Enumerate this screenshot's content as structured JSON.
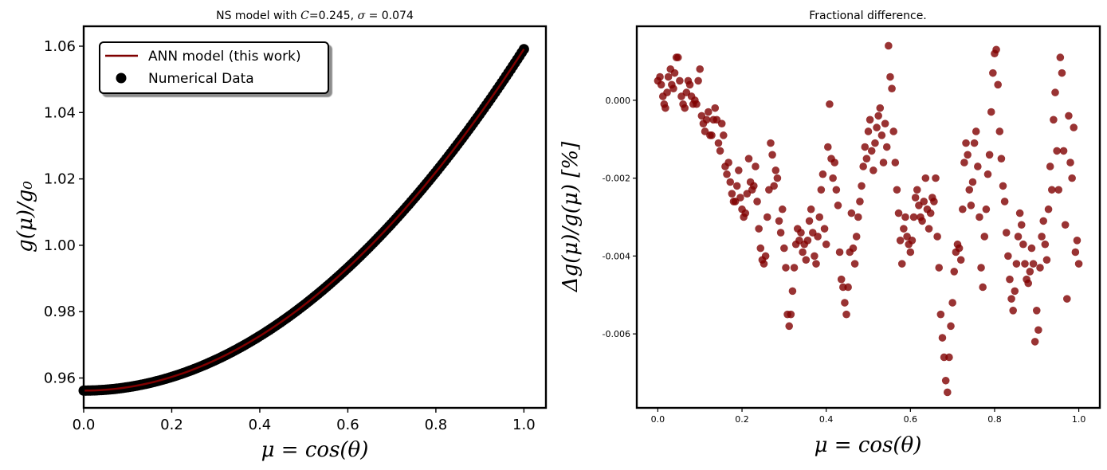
{
  "colors": {
    "accent": "#7f0000",
    "marker_right": "#800000",
    "marker_left": "#000000"
  },
  "chart_data": [
    {
      "type": "scatter",
      "title": "NS model with C=0.245, σ = 0.074",
      "title_parts": {
        "prefix": "NS model with ",
        "C_symbol": "C",
        "C_value": "=0.245, ",
        "sigma_symbol": "σ",
        "sigma_value": " = 0.074"
      },
      "xlabel": "μ = cos(θ)",
      "ylabel": "g(μ)/g₀",
      "xlim": [
        0.0,
        1.05
      ],
      "ylim": [
        0.951,
        1.066
      ],
      "x_ticks": [
        "0.0",
        "0.2",
        "0.4",
        "0.6",
        "0.8",
        "1.0"
      ],
      "y_ticks": [
        "0.96",
        "0.98",
        "1.00",
        "1.02",
        "1.04",
        "1.06"
      ],
      "grid": false,
      "legend": {
        "position": "top-left",
        "entries": [
          "ANN model (this work)",
          "Numerical Data"
        ]
      },
      "series": [
        {
          "name": "ANN model (this work)",
          "kind": "line",
          "model": "quadratic",
          "coefficients": {
            "a0": 0.9562,
            "a1": 0.0,
            "a2": 0.1029
          }
        },
        {
          "name": "Numerical Data",
          "kind": "scatter",
          "x_range": [
            0.0,
            1.0
          ],
          "n_points": 200,
          "same_model_as": "ANN model (this work)"
        }
      ]
    },
    {
      "type": "scatter",
      "title": "Fractional difference.",
      "xlabel": "μ = cos(θ)",
      "ylabel": "Δg(μ)/g(μ) [%]",
      "xlim": [
        -0.05,
        1.05
      ],
      "ylim": [
        -0.0079,
        0.0019
      ],
      "x_ticks": [
        "0.0",
        "0.2",
        "0.4",
        "0.6",
        "0.8",
        "1.0"
      ],
      "y_ticks": [
        "0.000",
        "-0.002",
        "-0.004",
        "-0.006"
      ],
      "grid": false,
      "points": [
        [
          0.0,
          0.0005
        ],
        [
          0.005,
          0.0006
        ],
        [
          0.008,
          0.0004
        ],
        [
          0.012,
          0.0001
        ],
        [
          0.015,
          -0.0001
        ],
        [
          0.018,
          -0.0002
        ],
        [
          0.022,
          0.0002
        ],
        [
          0.025,
          0.0006
        ],
        [
          0.03,
          0.0008
        ],
        [
          0.033,
          0.0004
        ],
        [
          0.037,
          0.0003
        ],
        [
          0.04,
          0.0007
        ],
        [
          0.044,
          0.0011
        ],
        [
          0.048,
          0.0011
        ],
        [
          0.052,
          0.0005
        ],
        [
          0.056,
          0.0001
        ],
        [
          0.06,
          -0.0001
        ],
        [
          0.064,
          -0.0002
        ],
        [
          0.068,
          0.0002
        ],
        [
          0.072,
          0.0005
        ],
        [
          0.076,
          0.0004
        ],
        [
          0.08,
          0.0001
        ],
        [
          0.084,
          -0.0001
        ],
        [
          0.088,
          0.0
        ],
        [
          0.092,
          -0.0001
        ],
        [
          0.096,
          0.0005
        ],
        [
          0.1,
          0.0008
        ],
        [
          0.104,
          -0.0004
        ],
        [
          0.108,
          -0.0006
        ],
        [
          0.112,
          -0.0008
        ],
        [
          0.116,
          -0.0005
        ],
        [
          0.12,
          -0.0003
        ],
        [
          0.124,
          -0.0009
        ],
        [
          0.128,
          -0.0009
        ],
        [
          0.132,
          -0.0005
        ],
        [
          0.136,
          -0.0002
        ],
        [
          0.14,
          -0.0005
        ],
        [
          0.144,
          -0.0011
        ],
        [
          0.148,
          -0.0013
        ],
        [
          0.152,
          -0.0006
        ],
        [
          0.156,
          -0.0009
        ],
        [
          0.16,
          -0.0017
        ],
        [
          0.164,
          -0.0019
        ],
        [
          0.168,
          -0.0016
        ],
        [
          0.172,
          -0.0021
        ],
        [
          0.176,
          -0.0024
        ],
        [
          0.18,
          -0.0026
        ],
        [
          0.184,
          -0.0026
        ],
        [
          0.188,
          -0.0022
        ],
        [
          0.192,
          -0.0018
        ],
        [
          0.196,
          -0.0025
        ],
        [
          0.2,
          -0.0028
        ],
        [
          0.204,
          -0.003
        ],
        [
          0.208,
          -0.0029
        ],
        [
          0.212,
          -0.0024
        ],
        [
          0.216,
          -0.0015
        ],
        [
          0.22,
          -0.0021
        ],
        [
          0.224,
          -0.0023
        ],
        [
          0.228,
          -0.0022
        ],
        [
          0.232,
          -0.0017
        ],
        [
          0.236,
          -0.0026
        ],
        [
          0.24,
          -0.0033
        ],
        [
          0.244,
          -0.0038
        ],
        [
          0.248,
          -0.0041
        ],
        [
          0.252,
          -0.0042
        ],
        [
          0.256,
          -0.004
        ],
        [
          0.26,
          -0.003
        ],
        [
          0.264,
          -0.0023
        ],
        [
          0.268,
          -0.0011
        ],
        [
          0.272,
          -0.0014
        ],
        [
          0.276,
          -0.0022
        ],
        [
          0.28,
          -0.0018
        ],
        [
          0.284,
          -0.002
        ],
        [
          0.288,
          -0.0031
        ],
        [
          0.292,
          -0.0034
        ],
        [
          0.296,
          -0.0028
        ],
        [
          0.3,
          -0.0038
        ],
        [
          0.304,
          -0.0043
        ],
        [
          0.308,
          -0.0055
        ],
        [
          0.312,
          -0.0058
        ],
        [
          0.316,
          -0.0055
        ],
        [
          0.32,
          -0.0049
        ],
        [
          0.324,
          -0.0043
        ],
        [
          0.328,
          -0.0037
        ],
        [
          0.332,
          -0.0033
        ],
        [
          0.336,
          -0.0036
        ],
        [
          0.34,
          -0.0034
        ],
        [
          0.344,
          -0.0039
        ],
        [
          0.348,
          -0.0037
        ],
        [
          0.352,
          -0.0041
        ],
        [
          0.356,
          -0.0036
        ],
        [
          0.36,
          -0.0031
        ],
        [
          0.364,
          -0.0028
        ],
        [
          0.368,
          -0.0034
        ],
        [
          0.372,
          -0.004
        ],
        [
          0.376,
          -0.0042
        ],
        [
          0.38,
          -0.0035
        ],
        [
          0.384,
          -0.003
        ],
        [
          0.388,
          -0.0023
        ],
        [
          0.392,
          -0.0019
        ],
        [
          0.396,
          -0.0033
        ],
        [
          0.4,
          -0.0037
        ],
        [
          0.404,
          -0.0012
        ],
        [
          0.408,
          -0.0001
        ],
        [
          0.412,
          -0.0015
        ],
        [
          0.416,
          -0.002
        ],
        [
          0.42,
          -0.0016
        ],
        [
          0.424,
          -0.0023
        ],
        [
          0.428,
          -0.0027
        ],
        [
          0.432,
          -0.0039
        ],
        [
          0.436,
          -0.0046
        ],
        [
          0.44,
          -0.0048
        ],
        [
          0.444,
          -0.0052
        ],
        [
          0.448,
          -0.0055
        ],
        [
          0.452,
          -0.0048
        ],
        [
          0.456,
          -0.0039
        ],
        [
          0.46,
          -0.0029
        ],
        [
          0.464,
          -0.0038
        ],
        [
          0.468,
          -0.0042
        ],
        [
          0.472,
          -0.0035
        ],
        [
          0.476,
          -0.003
        ],
        [
          0.48,
          -0.0026
        ],
        [
          0.484,
          -0.0022
        ],
        [
          0.488,
          -0.0017
        ],
        [
          0.492,
          -0.0012
        ],
        [
          0.496,
          -0.0015
        ],
        [
          0.5,
          -0.0008
        ],
        [
          0.504,
          -0.0005
        ],
        [
          0.508,
          -0.0013
        ],
        [
          0.512,
          -0.0018
        ],
        [
          0.516,
          -0.0011
        ],
        [
          0.52,
          -0.0007
        ],
        [
          0.524,
          -0.0004
        ],
        [
          0.528,
          -0.0002
        ],
        [
          0.532,
          -0.0009
        ],
        [
          0.536,
          -0.0016
        ],
        [
          0.54,
          -0.0006
        ],
        [
          0.544,
          -0.0012
        ],
        [
          0.548,
          0.0014
        ],
        [
          0.552,
          0.0006
        ],
        [
          0.556,
          0.0003
        ],
        [
          0.56,
          -0.0008
        ],
        [
          0.564,
          -0.0016
        ],
        [
          0.568,
          -0.0023
        ],
        [
          0.572,
          -0.0029
        ],
        [
          0.576,
          -0.0036
        ],
        [
          0.58,
          -0.0042
        ],
        [
          0.584,
          -0.0033
        ],
        [
          0.588,
          -0.003
        ],
        [
          0.592,
          -0.0035
        ],
        [
          0.596,
          -0.0037
        ],
        [
          0.6,
          -0.0039
        ],
        [
          0.604,
          -0.0036
        ],
        [
          0.608,
          -0.003
        ],
        [
          0.612,
          -0.0025
        ],
        [
          0.616,
          -0.0023
        ],
        [
          0.62,
          -0.0027
        ],
        [
          0.624,
          -0.003
        ],
        [
          0.628,
          -0.0031
        ],
        [
          0.632,
          -0.0026
        ],
        [
          0.636,
          -0.002
        ],
        [
          0.64,
          -0.0028
        ],
        [
          0.644,
          -0.0033
        ],
        [
          0.648,
          -0.0029
        ],
        [
          0.652,
          -0.0025
        ],
        [
          0.656,
          -0.0026
        ],
        [
          0.66,
          -0.002
        ],
        [
          0.664,
          -0.0035
        ],
        [
          0.668,
          -0.0043
        ],
        [
          0.672,
          -0.0055
        ],
        [
          0.676,
          -0.0061
        ],
        [
          0.68,
          -0.0066
        ],
        [
          0.684,
          -0.0072
        ],
        [
          0.688,
          -0.0075
        ],
        [
          0.692,
          -0.0066
        ],
        [
          0.696,
          -0.0058
        ],
        [
          0.7,
          -0.0052
        ],
        [
          0.704,
          -0.0044
        ],
        [
          0.708,
          -0.0039
        ],
        [
          0.712,
          -0.0037
        ],
        [
          0.716,
          -0.0038
        ],
        [
          0.72,
          -0.0041
        ],
        [
          0.724,
          -0.0028
        ],
        [
          0.728,
          -0.0016
        ],
        [
          0.732,
          -0.0011
        ],
        [
          0.736,
          -0.0014
        ],
        [
          0.74,
          -0.0023
        ],
        [
          0.744,
          -0.0027
        ],
        [
          0.748,
          -0.0021
        ],
        [
          0.752,
          -0.0011
        ],
        [
          0.756,
          -0.0008
        ],
        [
          0.76,
          -0.0017
        ],
        [
          0.764,
          -0.003
        ],
        [
          0.768,
          -0.0043
        ],
        [
          0.772,
          -0.0048
        ],
        [
          0.776,
          -0.0035
        ],
        [
          0.78,
          -0.0028
        ],
        [
          0.784,
          -0.0019
        ],
        [
          0.788,
          -0.0014
        ],
        [
          0.792,
          -0.0003
        ],
        [
          0.796,
          0.0007
        ],
        [
          0.8,
          0.0012
        ],
        [
          0.804,
          0.0013
        ],
        [
          0.808,
          0.0004
        ],
        [
          0.812,
          -0.0008
        ],
        [
          0.816,
          -0.0015
        ],
        [
          0.82,
          -0.0022
        ],
        [
          0.824,
          -0.0026
        ],
        [
          0.828,
          -0.0034
        ],
        [
          0.832,
          -0.004
        ],
        [
          0.836,
          -0.0046
        ],
        [
          0.84,
          -0.0051
        ],
        [
          0.844,
          -0.0054
        ],
        [
          0.848,
          -0.0049
        ],
        [
          0.852,
          -0.0042
        ],
        [
          0.856,
          -0.0035
        ],
        [
          0.86,
          -0.0029
        ],
        [
          0.864,
          -0.0032
        ],
        [
          0.868,
          -0.0037
        ],
        [
          0.872,
          -0.0042
        ],
        [
          0.876,
          -0.0046
        ],
        [
          0.88,
          -0.0047
        ],
        [
          0.884,
          -0.0044
        ],
        [
          0.888,
          -0.0038
        ],
        [
          0.892,
          -0.0042
        ],
        [
          0.896,
          -0.0062
        ],
        [
          0.9,
          -0.0054
        ],
        [
          0.904,
          -0.0059
        ],
        [
          0.908,
          -0.0043
        ],
        [
          0.912,
          -0.0035
        ],
        [
          0.916,
          -0.0031
        ],
        [
          0.92,
          -0.0037
        ],
        [
          0.924,
          -0.0041
        ],
        [
          0.928,
          -0.0028
        ],
        [
          0.932,
          -0.0017
        ],
        [
          0.936,
          -0.0023
        ],
        [
          0.94,
          -0.0005
        ],
        [
          0.944,
          0.0002
        ],
        [
          0.948,
          -0.0013
        ],
        [
          0.952,
          -0.0023
        ],
        [
          0.956,
          0.0011
        ],
        [
          0.96,
          0.0007
        ],
        [
          0.964,
          -0.0013
        ],
        [
          0.968,
          -0.0032
        ],
        [
          0.972,
          -0.0051
        ],
        [
          0.976,
          -0.0004
        ],
        [
          0.98,
          -0.0016
        ],
        [
          0.984,
          -0.002
        ],
        [
          0.988,
          -0.0007
        ],
        [
          0.992,
          -0.0039
        ],
        [
          0.996,
          -0.0036
        ],
        [
          1.0,
          -0.0042
        ]
      ]
    }
  ]
}
